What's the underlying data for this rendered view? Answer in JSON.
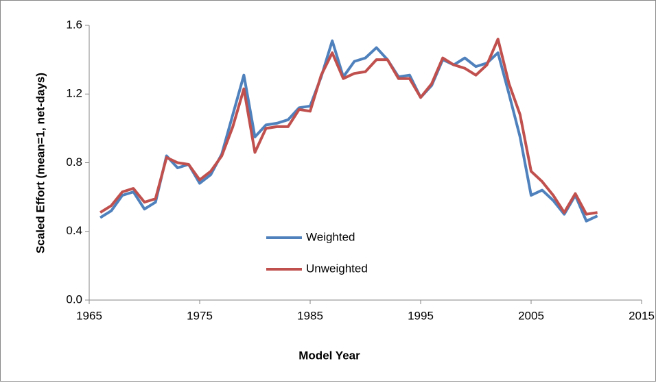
{
  "chart_data": {
    "type": "line",
    "xlabel": "Model Year",
    "ylabel": "Scaled Effort (mean=1, net-days)",
    "x": [
      1966,
      1967,
      1968,
      1969,
      1970,
      1971,
      1972,
      1973,
      1974,
      1975,
      1976,
      1977,
      1978,
      1979,
      1980,
      1981,
      1982,
      1983,
      1984,
      1985,
      1986,
      1987,
      1988,
      1989,
      1990,
      1991,
      1992,
      1993,
      1994,
      1995,
      1996,
      1997,
      1998,
      1999,
      2000,
      2001,
      2002,
      2003,
      2004,
      2005,
      2006,
      2007,
      2008,
      2009,
      2010,
      2011
    ],
    "series": [
      {
        "name": "Weighted",
        "color": "#4f81bd",
        "values": [
          0.48,
          0.52,
          0.61,
          0.63,
          0.53,
          0.57,
          0.84,
          0.77,
          0.79,
          0.68,
          0.73,
          0.85,
          1.08,
          1.31,
          0.95,
          1.02,
          1.03,
          1.05,
          1.12,
          1.13,
          1.3,
          1.51,
          1.3,
          1.39,
          1.41,
          1.47,
          1.4,
          1.3,
          1.31,
          1.18,
          1.25,
          1.4,
          1.37,
          1.41,
          1.36,
          1.38,
          1.44,
          1.2,
          0.95,
          0.61,
          0.64,
          0.58,
          0.5,
          0.61,
          0.46,
          0.49
        ]
      },
      {
        "name": "Unweighted",
        "color": "#c0504d",
        "values": [
          0.51,
          0.55,
          0.63,
          0.65,
          0.57,
          0.59,
          0.83,
          0.8,
          0.79,
          0.7,
          0.75,
          0.84,
          1.01,
          1.23,
          0.86,
          1.0,
          1.01,
          1.01,
          1.11,
          1.1,
          1.31,
          1.44,
          1.29,
          1.32,
          1.33,
          1.4,
          1.4,
          1.29,
          1.29,
          1.18,
          1.26,
          1.41,
          1.37,
          1.35,
          1.31,
          1.37,
          1.52,
          1.26,
          1.08,
          0.75,
          0.69,
          0.61,
          0.51,
          0.62,
          0.5,
          0.51
        ]
      }
    ],
    "xlim": [
      1965,
      2015
    ],
    "xticks": [
      1965,
      1975,
      1985,
      1995,
      2005,
      2015
    ],
    "ylim": [
      0,
      1.6
    ],
    "yticks": [
      {
        "value": 0,
        "label": "0.0"
      },
      0.4,
      0.8,
      1.2,
      1.6
    ],
    "grid": false,
    "legend": "inside"
  }
}
